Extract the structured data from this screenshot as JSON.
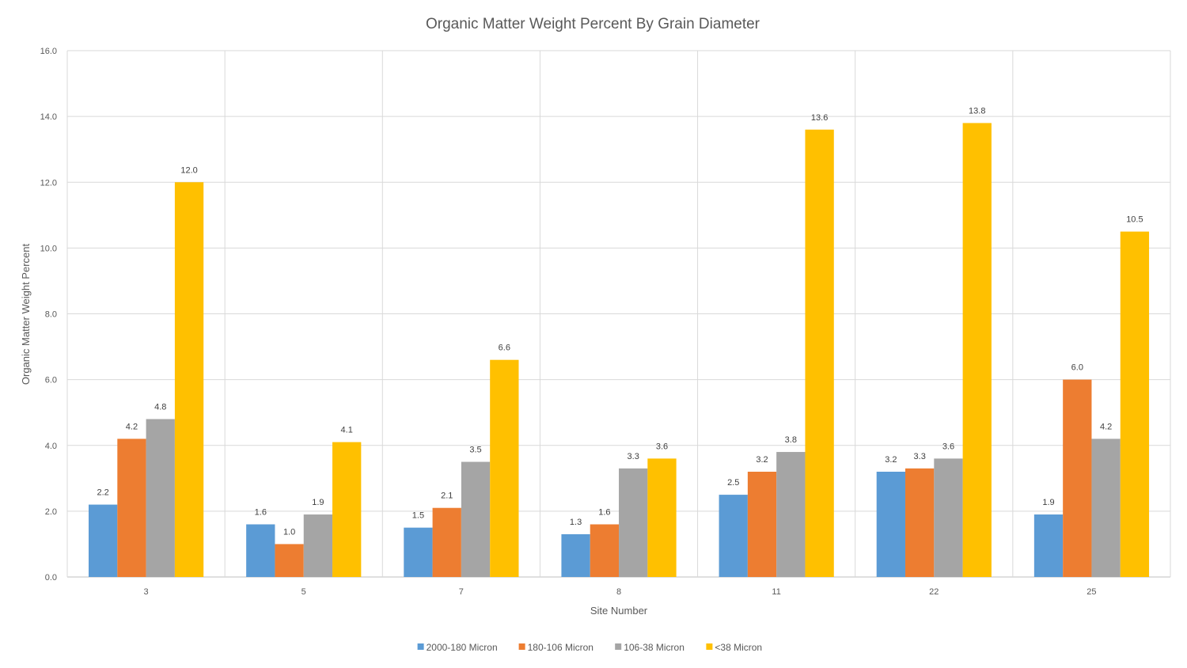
{
  "chart_data": {
    "type": "bar",
    "title": "Organic Matter Weight Percent By Grain Diameter",
    "xlabel": "Site Number",
    "ylabel": "Organic Matter Weight Percent",
    "ylim": [
      0,
      16
    ],
    "ytick_step": 2,
    "ytick_decimals": 1,
    "grid": true,
    "legend_position": "bottom",
    "categories": [
      "3",
      "5",
      "7",
      "8",
      "11",
      "22",
      "25"
    ],
    "series": [
      {
        "name": "2000-180 Micron",
        "color": "#5b9bd5",
        "values": [
          2.2,
          1.6,
          1.5,
          1.3,
          2.5,
          3.2,
          1.9
        ],
        "labels": [
          "2.2",
          "1.6",
          "1.5",
          "1.3",
          "2.5",
          "3.2",
          "1.9"
        ]
      },
      {
        "name": "180-106 Micron",
        "color": "#ed7d31",
        "values": [
          4.2,
          1.0,
          2.1,
          1.6,
          3.2,
          3.3,
          6.0
        ],
        "labels": [
          "4.2",
          "1.0",
          "2.1",
          "1.6",
          "3.2",
          "3.3",
          "6.0"
        ]
      },
      {
        "name": "106-38 Micron",
        "color": "#a5a5a5",
        "values": [
          4.8,
          1.9,
          3.5,
          3.3,
          3.8,
          3.6,
          4.2
        ],
        "labels": [
          "4.8",
          "1.9",
          "3.5",
          "3.3",
          "3.8",
          "3.6",
          "4.2"
        ]
      },
      {
        "name": "<38 Micron",
        "color": "#ffc000",
        "values": [
          12.0,
          4.1,
          6.6,
          3.6,
          13.6,
          13.8,
          10.5
        ],
        "labels": [
          "12.0",
          "4.1",
          "6.6",
          "3.6",
          "13.6",
          "13.8",
          "10.5"
        ]
      }
    ]
  }
}
